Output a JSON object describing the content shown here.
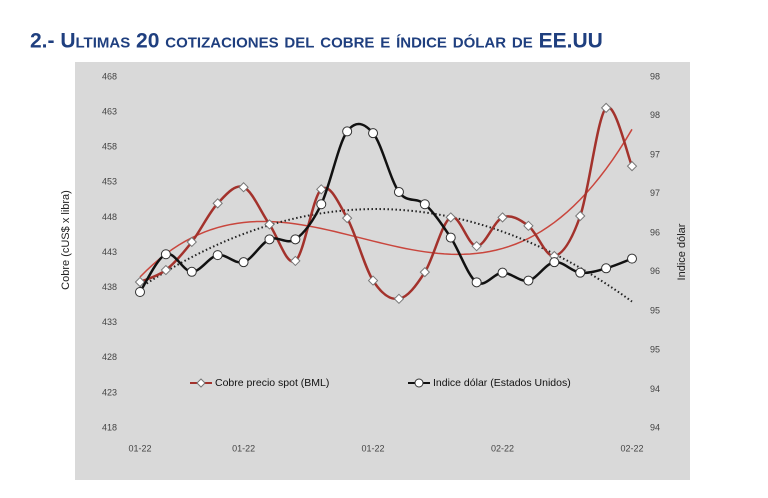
{
  "chart_data": {
    "type": "line",
    "title": "2.- Ultimas 20 cotizaciones del cobre e índice dólar de EE.UU",
    "ylabel": "Cobre (cUS$ x libra)",
    "y2label": "Indice dólar",
    "categories": [
      "01-22",
      null,
      null,
      null,
      "01-22",
      null,
      null,
      null,
      null,
      "01-22",
      null,
      null,
      null,
      null,
      "02-22",
      null,
      null,
      null,
      null,
      "02-22"
    ],
    "ylim": [
      418,
      468
    ],
    "yticks": [
      418,
      423,
      428,
      433,
      438,
      443,
      448,
      453,
      458,
      463,
      468
    ],
    "y2lim": [
      94,
      98
    ],
    "y2ticks": [
      94,
      {
        "value": 94.44,
        "label": "94"
      },
      {
        "value": 94.89,
        "label": "95"
      },
      {
        "value": 95.33,
        "label": "95"
      },
      {
        "value": 95.78,
        "label": "96"
      },
      {
        "value": 96.22,
        "label": "96"
      },
      {
        "value": 96.67,
        "label": "97"
      },
      {
        "value": 97.11,
        "label": "97"
      },
      {
        "value": 97.56,
        "label": "98"
      },
      98
    ],
    "series": [
      {
        "name": "Cobre precio spot (BML)",
        "color": "#a3322c",
        "marker": "diamond",
        "trend_color": "#c9463d",
        "values": [
          438.8,
          440.5,
          444.5,
          450,
          452.3,
          447,
          441.8,
          452,
          447.9,
          439,
          436.4,
          440.2,
          448,
          443.9,
          448,
          446.8,
          442.5,
          448.2,
          463.6,
          455.3
        ]
      },
      {
        "name": "Indice dólar (Estados Unidos)",
        "color": "#111111",
        "marker": "circle",
        "axis": "y2",
        "trend_color": "#222222",
        "values": [
          95.55,
          95.98,
          95.78,
          95.97,
          95.89,
          96.15,
          96.15,
          96.55,
          97.38,
          97.36,
          96.69,
          96.55,
          96.17,
          95.66,
          95.77,
          95.68,
          95.89,
          95.77,
          95.82,
          95.93
        ]
      }
    ]
  }
}
